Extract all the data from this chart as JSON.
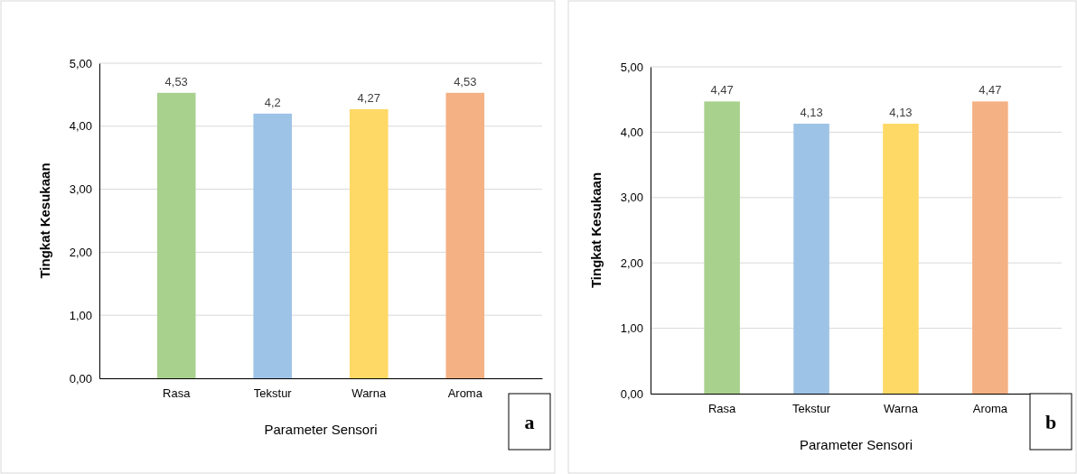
{
  "chart_data": [
    {
      "type": "bar",
      "categories": [
        "Rasa",
        "Tekstur",
        "Warna",
        "Aroma"
      ],
      "values": [
        4.53,
        4.2,
        4.27,
        4.53
      ],
      "value_labels": [
        "4,53",
        "4,2",
        "4,27",
        "4,53"
      ],
      "colors": [
        "#a9d18e",
        "#9dc3e6",
        "#ffd966",
        "#f4b183"
      ],
      "xlabel": "Parameter Sensori",
      "ylabel": "Tingkat Kesukaan",
      "ylim": [
        0,
        5
      ],
      "yticks": [
        {
          "value": 0,
          "label": "0,00"
        },
        {
          "value": 1,
          "label": "1,00"
        },
        {
          "value": 2,
          "label": "2,00"
        },
        {
          "value": 3,
          "label": "3,00"
        },
        {
          "value": 4,
          "label": "4,00"
        },
        {
          "value": 5,
          "label": "5,00"
        }
      ],
      "grid": "y",
      "annotations": [
        "a"
      ]
    },
    {
      "type": "bar",
      "categories": [
        "Rasa",
        "Tekstur",
        "Warna",
        "Aroma"
      ],
      "values": [
        4.47,
        4.13,
        4.13,
        4.47
      ],
      "value_labels": [
        "4,47",
        "4,13",
        "4,13",
        "4,47"
      ],
      "colors": [
        "#a9d18e",
        "#9dc3e6",
        "#ffd966",
        "#f4b183"
      ],
      "xlabel": "Parameter Sensori",
      "ylabel": "Tingkat Kesukaan",
      "ylim": [
        0,
        5
      ],
      "yticks": [
        {
          "value": 0,
          "label": "0,00"
        },
        {
          "value": 1,
          "label": "1,00"
        },
        {
          "value": 2,
          "label": "2,00"
        },
        {
          "value": 3,
          "label": "3,00"
        },
        {
          "value": 4,
          "label": "4,00"
        },
        {
          "value": 5,
          "label": "5,00"
        }
      ],
      "grid": "y",
      "annotations": [
        "b"
      ]
    }
  ]
}
